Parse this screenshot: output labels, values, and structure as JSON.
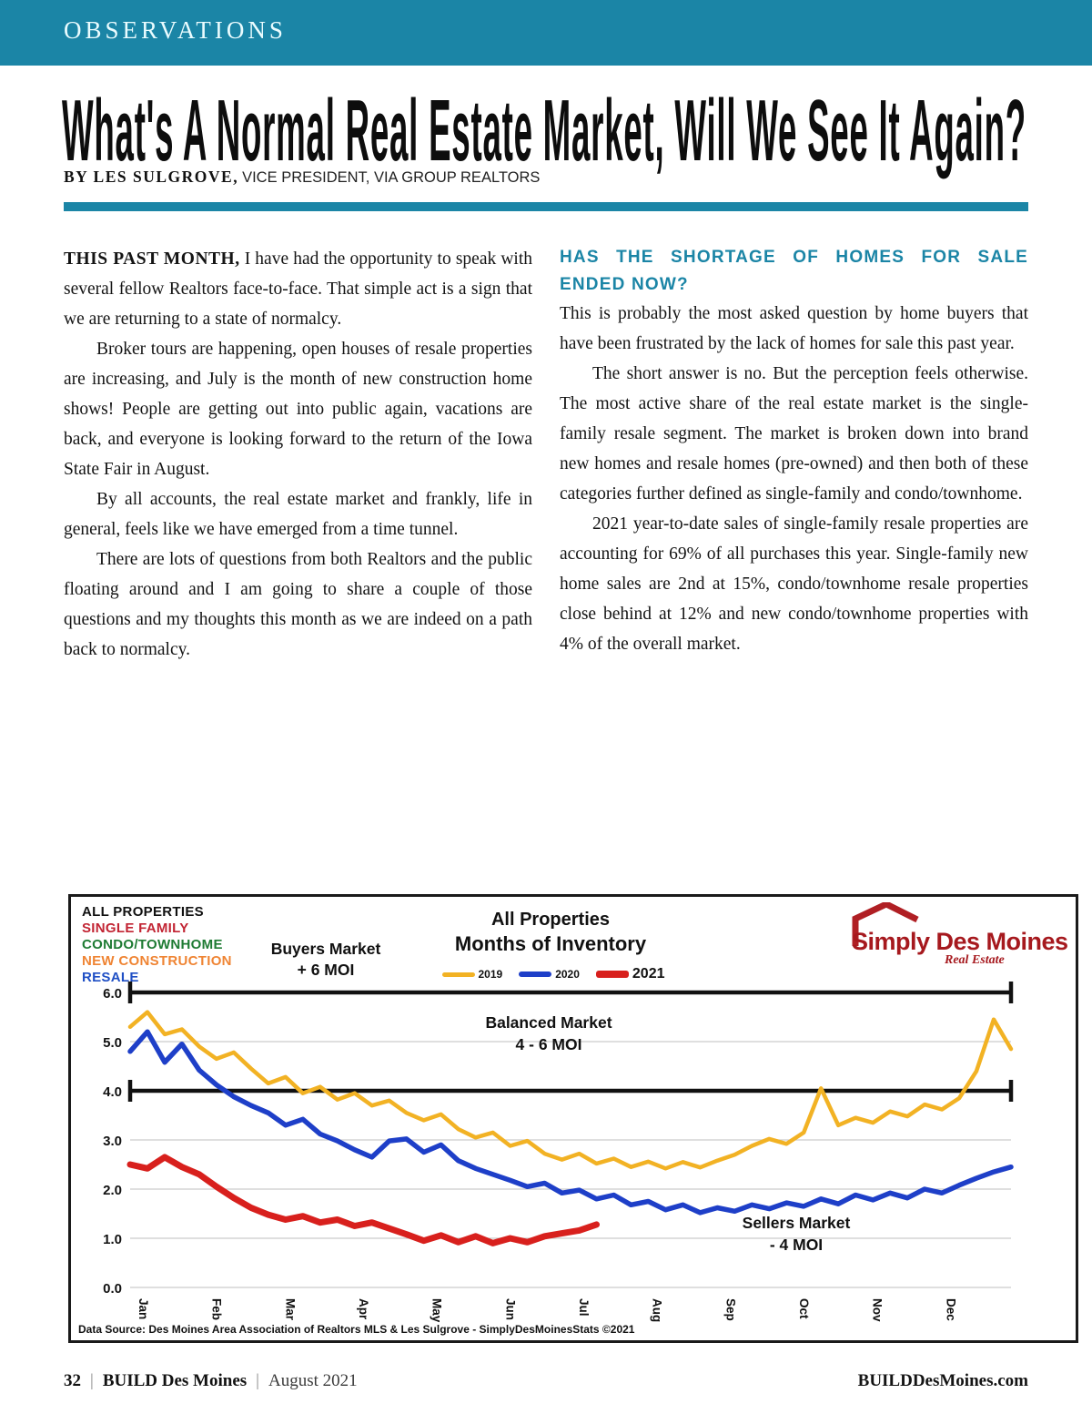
{
  "page": {
    "kicker": "OBSERVATIONS",
    "title": "What's A Normal Real Estate Market, Will We See It Again?",
    "byline_bold": "BY LES SULGROVE,",
    "byline_rest": " VICE PRESIDENT, VIA GROUP REALTORS",
    "accent_color": "#1B85A6"
  },
  "article": {
    "left_column": {
      "lead_bold": "THIS PAST MONTH,",
      "lead_rest": " I have had the opportunity to speak with several fellow Realtors face-to-face. That simple act is a sign that we are returning to a state of normalcy.",
      "paragraphs": [
        "Broker tours are happening, open houses of resale properties are increasing, and July is the month of new construction home shows! People are getting out into public again, vacations are back, and everyone is looking forward to the return of the Iowa State Fair in August.",
        "By all accounts, the real estate market and frankly, life in general, feels like we have emerged from a time tunnel.",
        "There are lots of questions from both Realtors and the public floating around and I am going to share a couple of those questions and my thoughts this month as we are indeed on a path back to normalcy."
      ]
    },
    "right_column": {
      "heading": "HAS THE SHORTAGE OF HOMES FOR SALE ENDED NOW?",
      "paragraphs": [
        "This is probably the most asked question by home buyers that have been frustrated by the lack of homes for sale this past year.",
        "The short answer is no. But the perception feels otherwise. The most active share of the real estate market is the single-family resale segment. The market is broken down into brand new homes and resale homes (pre-owned) and then both of these categories further defined as single-family and condo/townhome.",
        "2021 year-to-date sales of single-family resale properties are accounting for 69% of all purchases this year. Single-family new home sales are 2nd at 15%, condo/townhome resale properties close behind at 12% and new condo/townhome properties with 4% of the overall market."
      ]
    }
  },
  "chart": {
    "key": [
      {
        "label": "ALL PROPERTIES",
        "color": "#111111"
      },
      {
        "label": "SINGLE FAMILY",
        "color": "#C22433"
      },
      {
        "label": "CONDO/TOWNHOME",
        "color": "#1E7B33"
      },
      {
        "label": "NEW CONSTRUCTION",
        "color": "#EF8433"
      },
      {
        "label": "RESALE",
        "color": "#1F4FC5"
      }
    ],
    "buyers_line1": "Buyers Market",
    "buyers_line2": "+ 6 MOI",
    "balanced_line1": "Balanced Market",
    "balanced_line2": "4 - 6 MOI",
    "sellers_line1": "Sellers Market",
    "sellers_line2": "- 4 MOI",
    "logo_name": "Simply Des Moines",
    "logo_sub": "Real Estate",
    "source": "Data Source: Des Moines Area Association of Realtors MLS & Les Sulgrove - SimplyDesMoinesStats ©2021"
  },
  "chart_data": {
    "type": "line",
    "title": "All Properties",
    "subtitle": "Months of Inventory",
    "ylabel": "Months of Inventory (MOI)",
    "ylim": [
      0,
      6
    ],
    "y_ticks": [
      0,
      1,
      2,
      3,
      4,
      5,
      6
    ],
    "gridlines_light": [
      0,
      1,
      2,
      3,
      5
    ],
    "gridlines_strong": [
      4,
      6
    ],
    "x_labels": [
      "Jan",
      "Feb",
      "Mar",
      "Apr",
      "May",
      "Jun",
      "Jul",
      "Aug",
      "Sep",
      "Oct",
      "Nov",
      "Dec"
    ],
    "points_per_year": 52,
    "legend_position": "top-center",
    "series": [
      {
        "name": "2019",
        "color": "#F2B224",
        "values": [
          5.3,
          5.6,
          5.15,
          5.25,
          4.9,
          4.65,
          4.78,
          4.45,
          4.15,
          4.28,
          3.95,
          4.08,
          3.82,
          3.95,
          3.7,
          3.8,
          3.55,
          3.4,
          3.52,
          3.22,
          3.05,
          3.15,
          2.88,
          2.98,
          2.72,
          2.6,
          2.72,
          2.52,
          2.62,
          2.45,
          2.56,
          2.42,
          2.55,
          2.44,
          2.58,
          2.7,
          2.88,
          3.02,
          2.92,
          3.15,
          4.05,
          3.3,
          3.45,
          3.35,
          3.58,
          3.48,
          3.72,
          3.62,
          3.85,
          4.4,
          5.45,
          4.85
        ]
      },
      {
        "name": "2020",
        "color": "#1E3FC8",
        "values": [
          4.8,
          5.2,
          4.58,
          4.95,
          4.42,
          4.12,
          3.88,
          3.7,
          3.55,
          3.3,
          3.42,
          3.12,
          2.98,
          2.8,
          2.65,
          2.98,
          3.02,
          2.75,
          2.9,
          2.58,
          2.42,
          2.3,
          2.18,
          2.05,
          2.12,
          1.92,
          1.98,
          1.8,
          1.88,
          1.68,
          1.75,
          1.58,
          1.68,
          1.52,
          1.62,
          1.55,
          1.68,
          1.6,
          1.72,
          1.65,
          1.8,
          1.7,
          1.88,
          1.78,
          1.92,
          1.82,
          2.0,
          1.92,
          2.08,
          2.22,
          2.35,
          2.45
        ]
      },
      {
        "name": "2021",
        "color": "#D8201D",
        "values": [
          2.5,
          2.42,
          2.65,
          2.45,
          2.3,
          2.05,
          1.82,
          1.62,
          1.48,
          1.38,
          1.45,
          1.32,
          1.38,
          1.25,
          1.32,
          1.2,
          1.08,
          0.95,
          1.06,
          0.92,
          1.04,
          0.9,
          1.0,
          0.92,
          1.04,
          1.1,
          1.16,
          1.28
        ]
      }
    ],
    "annotations": [
      {
        "text": "Buyers Market + 6 MOI",
        "meaning": "above 6 months of inventory"
      },
      {
        "text": "Balanced Market 4 - 6 MOI",
        "meaning": "between the two bold lines"
      },
      {
        "text": "Sellers Market - 4 MOI",
        "meaning": "below 4 months of inventory"
      }
    ]
  },
  "footer": {
    "page_number": "32",
    "magazine": "BUILD Des Moines",
    "issue": "August 2021",
    "website": "BUILDDesMoines.com"
  }
}
